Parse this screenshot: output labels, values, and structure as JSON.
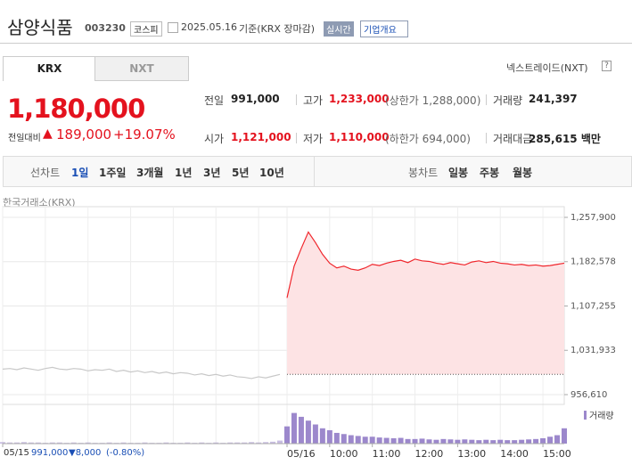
{
  "header": {
    "name": "삼양식품",
    "code": "003230",
    "market": "코스피",
    "date": "2025.05.16",
    "basis": "기준(KRX 장마감)",
    "realtime": "실시간",
    "company": "기업개요"
  },
  "tabs": [
    "KRX",
    "NXT"
  ],
  "nxt_link": "넥스트레이드(NXT)",
  "help": "?",
  "price": {
    "current": "1,180,000",
    "change_label": "전일대비",
    "change": "189,000",
    "change_pct": "+19.07%"
  },
  "summary": [
    [
      {
        "label": "전일",
        "value": "991,000"
      },
      {
        "label": "고가",
        "value": "1,233,000",
        "note": "(상한가 1,288,000)"
      },
      {
        "label": "거래량",
        "value": "241,397"
      }
    ],
    [
      {
        "label": "시가",
        "value": "1,121,000"
      },
      {
        "label": "저가",
        "value": "1,110,000",
        "note": "(하한가 694,000)"
      },
      {
        "label": "거래대금",
        "value": "285,615 백만"
      }
    ]
  ],
  "toolbar": {
    "line_label": "선차트",
    "line_periods": [
      "1일",
      "1주일",
      "3개월",
      "1년",
      "3년",
      "5년",
      "10년"
    ],
    "candle_label": "봉차트",
    "candle_periods": [
      "일봉",
      "주봉",
      "월봉"
    ]
  },
  "footer": {
    "date": "05/15",
    "close": "991,000",
    "change": "▼8,000",
    "pct": "(-0.80%)"
  },
  "chart_data": {
    "type": "line",
    "source": "한국거래소(KRX)",
    "categories": [
      "05/15",
      null,
      null,
      null,
      null,
      null,
      null,
      null,
      null,
      null,
      null,
      null,
      null,
      null,
      null,
      null,
      null,
      null,
      null,
      null,
      null,
      null,
      null,
      null,
      null,
      null,
      null,
      null,
      null,
      null,
      null,
      null,
      null,
      null,
      null,
      null,
      null,
      null,
      null,
      null,
      "05/16",
      null,
      null,
      null,
      null,
      null,
      "10:00",
      null,
      null,
      null,
      null,
      null,
      "11:00",
      null,
      null,
      null,
      null,
      null,
      "12:00",
      null,
      null,
      null,
      null,
      null,
      "13:00",
      null,
      null,
      null,
      null,
      null,
      "14:00",
      null,
      null,
      null,
      null,
      null,
      "15:00",
      null,
      null,
      null
    ],
    "series": [
      {
        "name": "05/15",
        "color": "#c8c8c8",
        "values": [
          1000000,
          1001000,
          999000,
          1002000,
          1000000,
          998000,
          1001000,
          1003000,
          1000000,
          999000,
          1001000,
          1000000,
          997000,
          999000,
          998000,
          1000000,
          996000,
          998000,
          995000,
          997000,
          994000,
          996000,
          993000,
          995000,
          992000,
          994000,
          993000,
          990000,
          992000,
          989000,
          991000,
          988000,
          990000,
          987000,
          986000,
          984000,
          987000,
          985000,
          988000,
          991000,
          null,
          null,
          null,
          null,
          null,
          null,
          null,
          null,
          null,
          null,
          null,
          null,
          null,
          null,
          null,
          null,
          null,
          null,
          null,
          null,
          null,
          null,
          null,
          null,
          null,
          null,
          null,
          null,
          null,
          null,
          null,
          null,
          null,
          null,
          null,
          null,
          null,
          null,
          null,
          null
        ]
      },
      {
        "name": "05/16",
        "color": "#f0262c",
        "values": [
          null,
          null,
          null,
          null,
          null,
          null,
          null,
          null,
          null,
          null,
          null,
          null,
          null,
          null,
          null,
          null,
          null,
          null,
          null,
          null,
          null,
          null,
          null,
          null,
          null,
          null,
          null,
          null,
          null,
          null,
          null,
          null,
          null,
          null,
          null,
          null,
          null,
          null,
          null,
          null,
          1121000,
          1175000,
          1205000,
          1233000,
          1215000,
          1195000,
          1180000,
          1172000,
          1175000,
          1170000,
          1168000,
          1172000,
          1178000,
          1176000,
          1180000,
          1183000,
          1185000,
          1181000,
          1187000,
          1184000,
          1183000,
          1180000,
          1178000,
          1181000,
          1179000,
          1177000,
          1182000,
          1184000,
          1181000,
          1183000,
          1180000,
          1179000,
          1177000,
          1178000,
          1176000,
          1177000,
          1175000,
          1176000,
          1178000,
          1180000
        ]
      }
    ],
    "area_color": "#fde3e4",
    "reference_line": 991000,
    "ylim": [
      956610,
      1257900
    ],
    "yticks": [
      {
        "value": 956610,
        "label": "956,610"
      },
      {
        "value": 1031933,
        "label": "1,031,933"
      },
      {
        "value": 1107255,
        "label": "1,107,255"
      },
      {
        "value": 1182578,
        "label": "1,182,578"
      },
      {
        "value": 1257900,
        "label": "1,257,900"
      }
    ],
    "grid": true,
    "volume": {
      "name": "거래량",
      "color": "#9c88cc",
      "ylim": [
        0,
        100
      ],
      "values": [
        4,
        3,
        3,
        4,
        3,
        3,
        2,
        3,
        3,
        2,
        3,
        2,
        3,
        2,
        2,
        3,
        2,
        3,
        2,
        2,
        3,
        2,
        2,
        3,
        2,
        2,
        3,
        2,
        3,
        2,
        3,
        2,
        3,
        3,
        3,
        4,
        3,
        4,
        5,
        8,
        45,
        80,
        70,
        60,
        50,
        40,
        35,
        28,
        25,
        22,
        20,
        18,
        18,
        16,
        15,
        14,
        15,
        12,
        12,
        13,
        11,
        10,
        12,
        11,
        10,
        11,
        10,
        9,
        10,
        9,
        10,
        9,
        9,
        10,
        11,
        12,
        14,
        18,
        22,
        40
      ]
    }
  }
}
